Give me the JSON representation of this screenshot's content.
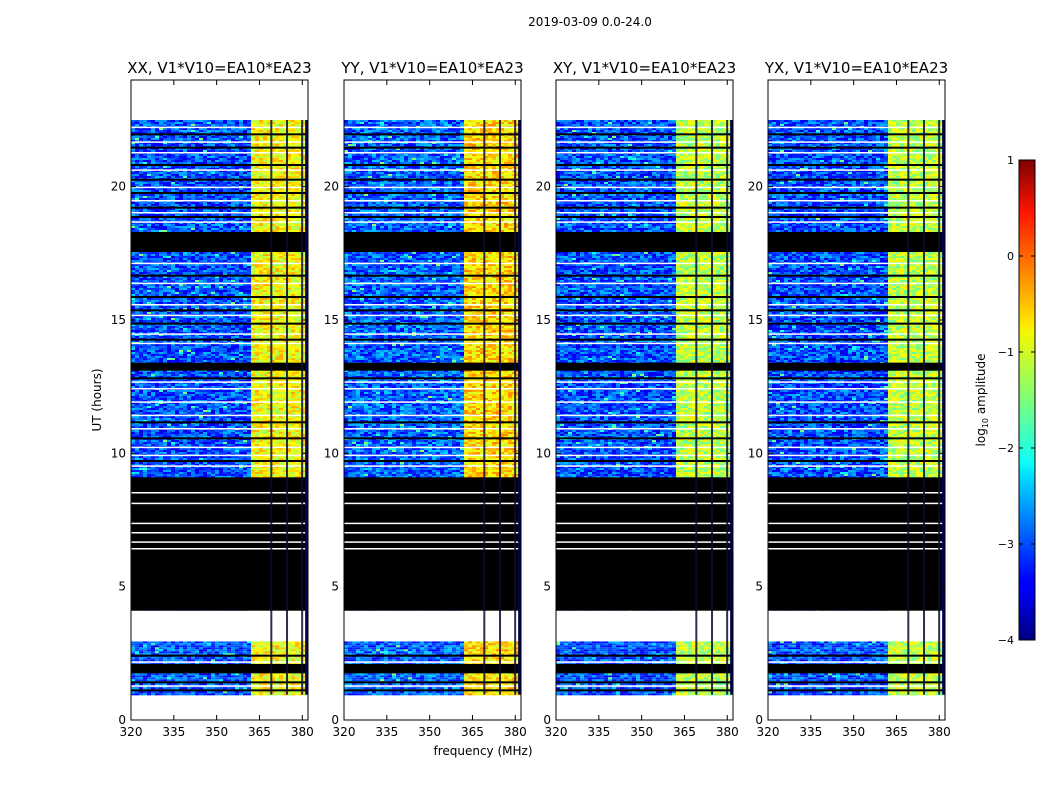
{
  "figure": {
    "suptitle": "2019-03-09 0.0-24.0"
  },
  "chart_data": {
    "type": "heatmap",
    "xlabel": "frequency (MHz)",
    "ylabel": "UT (hours)",
    "xlim": [
      320,
      382
    ],
    "ylim": [
      0,
      24
    ],
    "xticks": [
      320,
      335,
      350,
      365,
      380
    ],
    "yticks": [
      0,
      5,
      10,
      15,
      20
    ],
    "colormap": "jet",
    "colorbar": {
      "label_main": "log",
      "label_sub": "10",
      "label_rest": " amplitude",
      "vmin": -4,
      "vmax": 1,
      "ticks": [
        -4,
        -3,
        -2,
        -1,
        0,
        1
      ],
      "tick_labels": [
        "−4",
        "−3",
        "−2",
        "−1",
        "0",
        "1"
      ]
    },
    "panels": [
      {
        "title": "XX, V1*V10=EA10*EA23",
        "high_band_level": 0.62,
        "background_level": 0.2
      },
      {
        "title": "YY, V1*V10=EA10*EA23",
        "high_band_level": 0.66,
        "background_level": 0.22
      },
      {
        "title": "XY, V1*V10=EA10*EA23",
        "high_band_level": 0.56,
        "background_level": 0.2
      },
      {
        "title": "YX, V1*V10=EA10*EA23",
        "high_band_level": 0.56,
        "background_level": 0.2
      }
    ],
    "data_time_range_hours": [
      0.95,
      22.5
    ],
    "no_data_gap_hours": [
      [
        2.95,
        4.1
      ]
    ],
    "flagged_black_ranges_hours": [
      [
        4.1,
        9.1
      ],
      [
        13.1,
        13.4
      ],
      [
        17.55,
        18.3
      ],
      [
        1.75,
        2.1
      ]
    ],
    "strong_band_mhz": [
      362,
      382
    ],
    "strong_band_flagged_columns_mhz": [
      [
        368.8,
        369.4
      ],
      [
        374.3,
        374.9
      ],
      [
        379.6,
        380.2
      ]
    ]
  }
}
